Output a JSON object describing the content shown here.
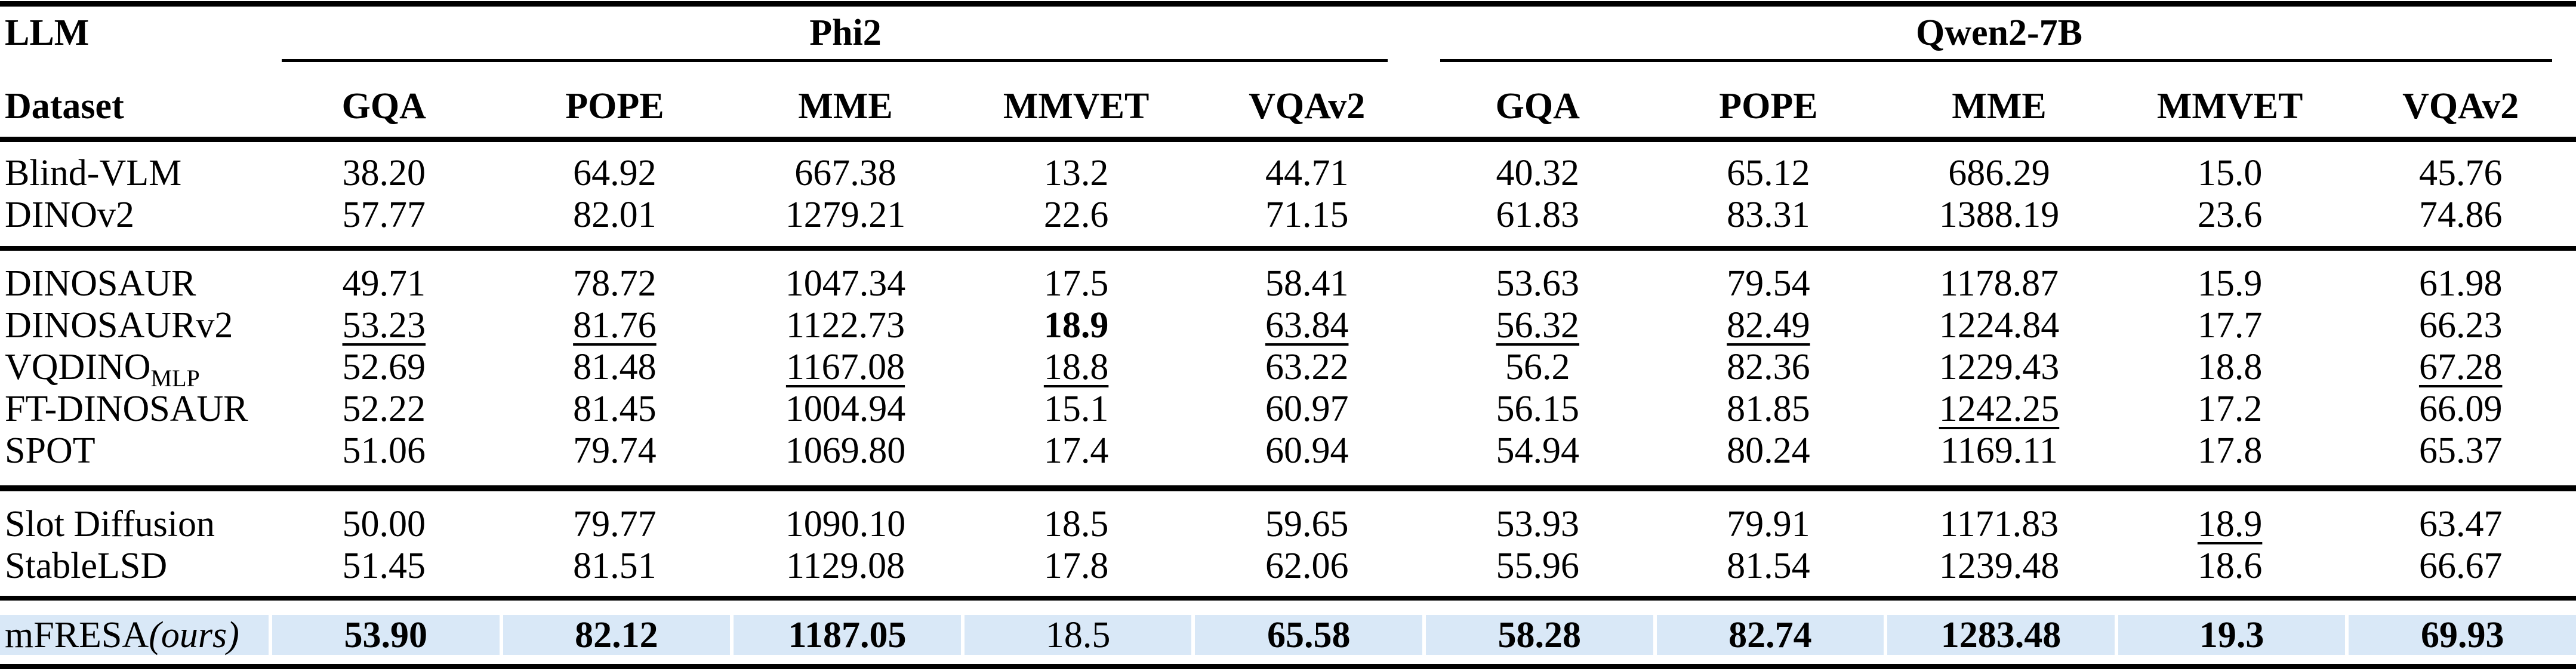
{
  "page": {
    "background": "#ffffff",
    "text_color": "#000000",
    "rule_color": "#000000",
    "highlight_color": "#d9e8f7"
  },
  "table": {
    "corner": {
      "line1": "LLM",
      "line2": "Dataset"
    },
    "groups": [
      {
        "label": "Phi2",
        "columns": [
          "GQA",
          "POPE",
          "MME",
          "MMVET",
          "VQAv2"
        ]
      },
      {
        "label": "Qwen2-7B",
        "columns": [
          "GQA",
          "POPE",
          "MME",
          "MMVET",
          "VQAv2"
        ]
      }
    ],
    "sections": [
      {
        "rows": [
          {
            "label": "Blind-VLM",
            "cells": [
              {
                "v": "38.20"
              },
              {
                "v": "64.92"
              },
              {
                "v": "667.38"
              },
              {
                "v": "13.2"
              },
              {
                "v": "44.71"
              },
              {
                "v": "40.32"
              },
              {
                "v": "65.12"
              },
              {
                "v": "686.29"
              },
              {
                "v": "15.0"
              },
              {
                "v": "45.76"
              }
            ]
          },
          {
            "label": "DINOv2",
            "cells": [
              {
                "v": "57.77"
              },
              {
                "v": "82.01"
              },
              {
                "v": "1279.21"
              },
              {
                "v": "22.6"
              },
              {
                "v": "71.15"
              },
              {
                "v": "61.83"
              },
              {
                "v": "83.31"
              },
              {
                "v": "1388.19"
              },
              {
                "v": "23.6"
              },
              {
                "v": "74.86"
              }
            ]
          }
        ]
      },
      {
        "rows": [
          {
            "label": "DINOSAUR",
            "cells": [
              {
                "v": "49.71"
              },
              {
                "v": "78.72"
              },
              {
                "v": "1047.34"
              },
              {
                "v": "17.5"
              },
              {
                "v": "58.41"
              },
              {
                "v": "53.63"
              },
              {
                "v": "79.54"
              },
              {
                "v": "1178.87"
              },
              {
                "v": "15.9"
              },
              {
                "v": "61.98"
              }
            ]
          },
          {
            "label": "DINOSAURv2",
            "cells": [
              {
                "v": "53.23",
                "u": true
              },
              {
                "v": "81.76",
                "u": true
              },
              {
                "v": "1122.73"
              },
              {
                "v": "18.9",
                "b": true
              },
              {
                "v": "63.84",
                "u": true
              },
              {
                "v": "56.32",
                "u": true
              },
              {
                "v": "82.49",
                "u": true
              },
              {
                "v": "1224.84"
              },
              {
                "v": "17.7"
              },
              {
                "v": "66.23"
              }
            ]
          },
          {
            "label": "VQDINO",
            "label_sub": "MLP",
            "cells": [
              {
                "v": "52.69"
              },
              {
                "v": "81.48"
              },
              {
                "v": "1167.08",
                "u": true
              },
              {
                "v": "18.8",
                "u": true
              },
              {
                "v": "63.22"
              },
              {
                "v": "56.2"
              },
              {
                "v": "82.36"
              },
              {
                "v": "1229.43"
              },
              {
                "v": "18.8"
              },
              {
                "v": "67.28",
                "u": true
              }
            ]
          },
          {
            "label": "FT-DINOSAUR",
            "cells": [
              {
                "v": "52.22"
              },
              {
                "v": "81.45"
              },
              {
                "v": "1004.94"
              },
              {
                "v": "15.1"
              },
              {
                "v": "60.97"
              },
              {
                "v": "56.15"
              },
              {
                "v": "81.85"
              },
              {
                "v": "1242.25",
                "u": true
              },
              {
                "v": "17.2"
              },
              {
                "v": "66.09"
              }
            ]
          },
          {
            "label": "SPOT",
            "cells": [
              {
                "v": "51.06"
              },
              {
                "v": "79.74"
              },
              {
                "v": "1069.80"
              },
              {
                "v": "17.4"
              },
              {
                "v": "60.94"
              },
              {
                "v": "54.94"
              },
              {
                "v": "80.24"
              },
              {
                "v": "1169.11"
              },
              {
                "v": "17.8"
              },
              {
                "v": "65.37"
              }
            ]
          }
        ]
      },
      {
        "rows": [
          {
            "label": "Slot Diffusion",
            "cells": [
              {
                "v": "50.00"
              },
              {
                "v": "79.77"
              },
              {
                "v": "1090.10"
              },
              {
                "v": "18.5"
              },
              {
                "v": "59.65"
              },
              {
                "v": "53.93"
              },
              {
                "v": "79.91"
              },
              {
                "v": "1171.83"
              },
              {
                "v": "18.9",
                "u": true
              },
              {
                "v": "63.47"
              }
            ]
          },
          {
            "label": "StableLSD",
            "cells": [
              {
                "v": "51.45"
              },
              {
                "v": "81.51"
              },
              {
                "v": "1129.08"
              },
              {
                "v": "17.8"
              },
              {
                "v": "62.06"
              },
              {
                "v": "55.96"
              },
              {
                "v": "81.54"
              },
              {
                "v": "1239.48"
              },
              {
                "v": "18.6"
              },
              {
                "v": "66.67"
              }
            ]
          }
        ]
      }
    ],
    "highlight_row": {
      "label": "mFRESA",
      "label_note": "(ours)",
      "cells": [
        {
          "v": "53.90",
          "b": true
        },
        {
          "v": "82.12",
          "b": true
        },
        {
          "v": "1187.05",
          "b": true
        },
        {
          "v": "18.5"
        },
        {
          "v": "65.58",
          "b": true
        },
        {
          "v": "58.28",
          "b": true
        },
        {
          "v": "82.74",
          "b": true
        },
        {
          "v": "1283.48",
          "b": true
        },
        {
          "v": "19.3",
          "b": true
        },
        {
          "v": "69.93",
          "b": true
        }
      ]
    }
  }
}
